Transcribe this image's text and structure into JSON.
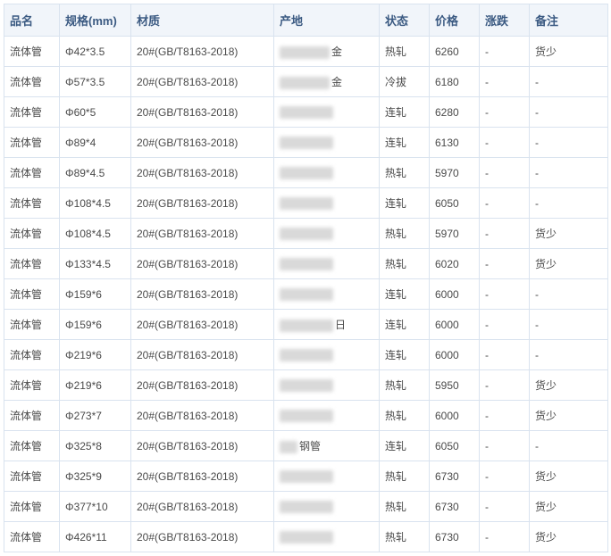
{
  "table": {
    "columns": [
      {
        "key": "name",
        "label": "品名"
      },
      {
        "key": "spec",
        "label": "规格(mm)"
      },
      {
        "key": "material",
        "label": "材质"
      },
      {
        "key": "origin",
        "label": "产地"
      },
      {
        "key": "status",
        "label": "状态"
      },
      {
        "key": "price",
        "label": "价格"
      },
      {
        "key": "change",
        "label": "涨跌"
      },
      {
        "key": "note",
        "label": "备注"
      }
    ],
    "rows": [
      {
        "name": "流体管",
        "spec": "Φ42*3.5",
        "material": "20#(GB/T8163-2018)",
        "origin_blur_w": 56,
        "origin_suffix": "金",
        "status": "热轧",
        "price": "6260",
        "change": "-",
        "note": "货少"
      },
      {
        "name": "流体管",
        "spec": "Φ57*3.5",
        "material": "20#(GB/T8163-2018)",
        "origin_blur_w": 56,
        "origin_suffix": "金",
        "status": "冷拔",
        "price": "6180",
        "change": "-",
        "note": "-"
      },
      {
        "name": "流体管",
        "spec": "Φ60*5",
        "material": "20#(GB/T8163-2018)",
        "origin_blur_w": 60,
        "origin_suffix": "",
        "status": "连轧",
        "price": "6280",
        "change": "-",
        "note": "-"
      },
      {
        "name": "流体管",
        "spec": "Φ89*4",
        "material": "20#(GB/T8163-2018)",
        "origin_blur_w": 60,
        "origin_suffix": "",
        "status": "连轧",
        "price": "6130",
        "change": "-",
        "note": "-"
      },
      {
        "name": "流体管",
        "spec": "Φ89*4.5",
        "material": "20#(GB/T8163-2018)",
        "origin_blur_w": 60,
        "origin_suffix": "",
        "status": "热轧",
        "price": "5970",
        "change": "-",
        "note": "-"
      },
      {
        "name": "流体管",
        "spec": "Φ108*4.5",
        "material": "20#(GB/T8163-2018)",
        "origin_blur_w": 60,
        "origin_suffix": "",
        "status": "连轧",
        "price": "6050",
        "change": "-",
        "note": "-"
      },
      {
        "name": "流体管",
        "spec": "Φ108*4.5",
        "material": "20#(GB/T8163-2018)",
        "origin_blur_w": 60,
        "origin_suffix": "",
        "status": "热轧",
        "price": "5970",
        "change": "-",
        "note": "货少"
      },
      {
        "name": "流体管",
        "spec": "Φ133*4.5",
        "material": "20#(GB/T8163-2018)",
        "origin_blur_w": 60,
        "origin_suffix": "",
        "status": "热轧",
        "price": "6020",
        "change": "-",
        "note": "货少"
      },
      {
        "name": "流体管",
        "spec": "Φ159*6",
        "material": "20#(GB/T8163-2018)",
        "origin_blur_w": 60,
        "origin_suffix": "",
        "status": "连轧",
        "price": "6000",
        "change": "-",
        "note": "-"
      },
      {
        "name": "流体管",
        "spec": "Φ159*6",
        "material": "20#(GB/T8163-2018)",
        "origin_blur_w": 60,
        "origin_suffix": "日",
        "status": "连轧",
        "price": "6000",
        "change": "-",
        "note": "-"
      },
      {
        "name": "流体管",
        "spec": "Φ219*6",
        "material": "20#(GB/T8163-2018)",
        "origin_blur_w": 60,
        "origin_suffix": "",
        "status": "连轧",
        "price": "6000",
        "change": "-",
        "note": "-"
      },
      {
        "name": "流体管",
        "spec": "Φ219*6",
        "material": "20#(GB/T8163-2018)",
        "origin_blur_w": 60,
        "origin_suffix": "",
        "status": "热轧",
        "price": "5950",
        "change": "-",
        "note": "货少"
      },
      {
        "name": "流体管",
        "spec": "Φ273*7",
        "material": "20#(GB/T8163-2018)",
        "origin_blur_w": 60,
        "origin_suffix": "",
        "status": "热轧",
        "price": "6000",
        "change": "-",
        "note": "货少"
      },
      {
        "name": "流体管",
        "spec": "Φ325*8",
        "material": "20#(GB/T8163-2018)",
        "origin_blur_w": 20,
        "origin_suffix": "钢管",
        "status": "连轧",
        "price": "6050",
        "change": "-",
        "note": "-"
      },
      {
        "name": "流体管",
        "spec": "Φ325*9",
        "material": "20#(GB/T8163-2018)",
        "origin_blur_w": 60,
        "origin_suffix": "",
        "status": "热轧",
        "price": "6730",
        "change": "-",
        "note": "货少"
      },
      {
        "name": "流体管",
        "spec": "Φ377*10",
        "material": "20#(GB/T8163-2018)",
        "origin_blur_w": 60,
        "origin_suffix": "",
        "status": "热轧",
        "price": "6730",
        "change": "-",
        "note": "货少"
      },
      {
        "name": "流体管",
        "spec": "Φ426*11",
        "material": "20#(GB/T8163-2018)",
        "origin_blur_w": 60,
        "origin_suffix": "",
        "status": "热轧",
        "price": "6730",
        "change": "-",
        "note": "货少"
      }
    ],
    "colors": {
      "border": "#d9e3ef",
      "header_bg": "#f1f5fa",
      "header_text": "#3b5a82",
      "cell_text": "#4a4a4a",
      "blur_bg": "#d9d9d9"
    }
  }
}
